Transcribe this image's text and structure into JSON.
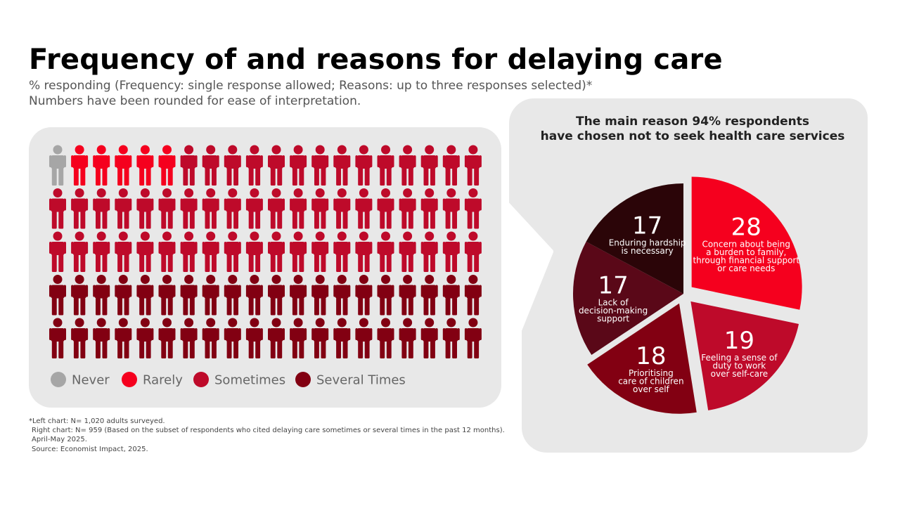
{
  "title": "Frequency of and reasons for delaying care",
  "subtitle_lines": [
    "% responding (Frequency: single response allowed; Reasons: up to three responses selected)*",
    "Numbers have been rounded for ease of interpretation."
  ],
  "colors": {
    "panel_bg": "#e8e8e8",
    "Never": "#a6a6a6",
    "Rarely": "#f5001e",
    "Sometimes": "#be0a2a",
    "Several Times": "#820012"
  },
  "chart_data": [
    {
      "type": "pictogram",
      "grid": {
        "rows": 5,
        "cols": 20,
        "total": 100
      },
      "categories": [
        "Never",
        "Rarely",
        "Sometimes",
        "Several Times"
      ],
      "values": [
        1,
        5,
        54,
        40
      ],
      "legend": [
        "Never",
        "Rarely",
        "Sometimes",
        "Several Times"
      ],
      "legend_position": "bottom-left"
    },
    {
      "type": "pie",
      "title_lines": [
        "The main reason 94% respondents",
        "have chosen not to seek health care services"
      ],
      "slices": [
        {
          "value": 28,
          "label": [
            "Concern about being",
            "a burden to family,",
            "through financial support",
            "or care needs"
          ],
          "color": "#f5001e",
          "exploded": true
        },
        {
          "value": 19,
          "label": [
            "Feeling a sense of",
            "duty to work",
            "over self-care"
          ],
          "color": "#be0a2a",
          "exploded": true
        },
        {
          "value": 18,
          "label": [
            "Prioritising",
            "care of children",
            "over self"
          ],
          "color": "#820012",
          "exploded": true
        },
        {
          "value": 17,
          "label": [
            "Lack of",
            "decision-making",
            "support"
          ],
          "color": "#5a0818",
          "exploded": false
        },
        {
          "value": 17,
          "label": [
            "Enduring hardship",
            "is necessary"
          ],
          "color": "#2b0508",
          "exploded": false
        }
      ]
    }
  ],
  "footnotes": [
    "*Left chart: N= 1,020 adults surveyed.",
    "Right chart: N= 959 (Based on the subset of respondents who cited delaying care sometimes or several times in the past 12 months).",
    "April-May 2025.",
    "Source: Economist Impact, 2025."
  ]
}
